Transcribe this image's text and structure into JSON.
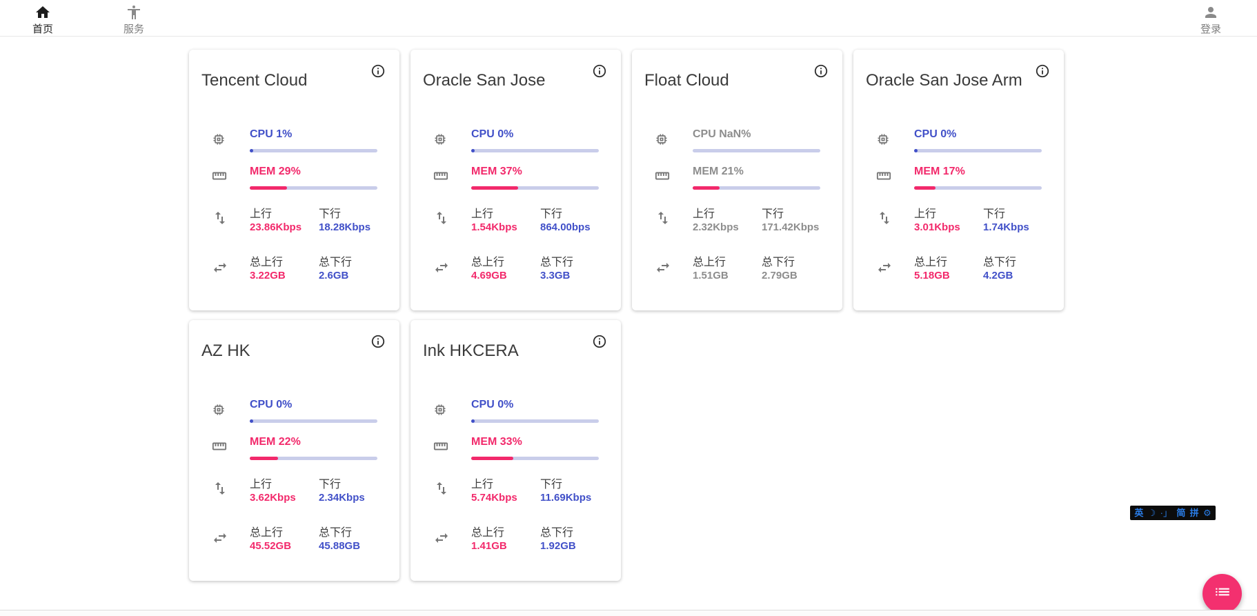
{
  "nav": {
    "home": {
      "label": "首页",
      "icon": "home-icon"
    },
    "services": {
      "label": "服务",
      "icon": "accessibility-icon"
    },
    "login": {
      "label": "登录",
      "icon": "person-icon"
    }
  },
  "labels": {
    "up": "上行",
    "down": "下行",
    "total_up": "总上行",
    "total_down": "总下行"
  },
  "colors": {
    "accent_blue": "#4150c8",
    "accent_pink": "#f2296b",
    "bar_track": "#c9cdea",
    "offline_gray": "#8d8d8d",
    "fab_pink": "#f3306f",
    "ime_blue": "#2a7de8"
  },
  "cards": [
    {
      "title": "Tencent Cloud",
      "cpu_label": "CPU 1%",
      "cpu_pct": 1,
      "mem_label": "MEM 29%",
      "mem_pct": 29,
      "up": "23.86Kbps",
      "down": "18.28Kbps",
      "total_up": "3.22GB",
      "total_down": "2.6GB",
      "offline": false
    },
    {
      "title": "Oracle San Jose",
      "cpu_label": "CPU 0%",
      "cpu_pct": 0,
      "mem_label": "MEM 37%",
      "mem_pct": 37,
      "up": "1.54Kbps",
      "down": "864.00bps",
      "total_up": "4.69GB",
      "total_down": "3.3GB",
      "offline": false
    },
    {
      "title": "Float Cloud",
      "cpu_label": "CPU NaN%",
      "cpu_pct": null,
      "mem_label": "MEM 21%",
      "mem_pct": 21,
      "up": "2.32Kbps",
      "down": "171.42Kbps",
      "total_up": "1.51GB",
      "total_down": "2.79GB",
      "offline": true
    },
    {
      "title": "Oracle San Jose Arm",
      "cpu_label": "CPU 0%",
      "cpu_pct": 0,
      "mem_label": "MEM 17%",
      "mem_pct": 17,
      "up": "3.01Kbps",
      "down": "1.74Kbps",
      "total_up": "5.18GB",
      "total_down": "4.2GB",
      "offline": false
    },
    {
      "title": "AZ HK",
      "cpu_label": "CPU 0%",
      "cpu_pct": 0,
      "mem_label": "MEM 22%",
      "mem_pct": 22,
      "up": "3.62Kbps",
      "down": "2.34Kbps",
      "total_up": "45.52GB",
      "total_down": "45.88GB",
      "offline": false
    },
    {
      "title": "Ink HKCERA",
      "cpu_label": "CPU 0%",
      "cpu_pct": 0,
      "mem_label": "MEM 33%",
      "mem_pct": 33,
      "up": "5.74Kbps",
      "down": "11.69Kbps",
      "total_up": "1.41GB",
      "total_down": "1.92GB",
      "offline": false
    }
  ],
  "ime_bar": {
    "items": [
      {
        "name": "ime-lang-english",
        "glyph": "英"
      },
      {
        "name": "ime-halfwidth-moon-icon",
        "glyph": "☽"
      },
      {
        "name": "ime-punctuation-mode",
        "glyph": "·」"
      },
      {
        "name": "ime-simplified-chinese",
        "glyph": "简"
      },
      {
        "name": "ime-pinyin-mode",
        "glyph": "拼"
      },
      {
        "name": "ime-settings-gear-icon",
        "glyph": "⚙"
      }
    ]
  },
  "fab": {
    "icon": "list-icon"
  }
}
